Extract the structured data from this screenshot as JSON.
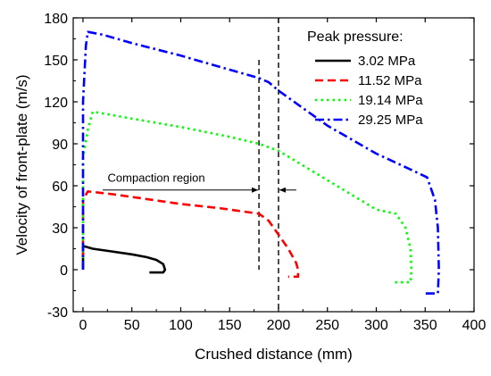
{
  "chart_data": {
    "type": "line",
    "title": "",
    "xlabel": "Crushed distance (mm)",
    "ylabel": "Velocity of front-plate (m/s)",
    "xlim": [
      -10,
      400
    ],
    "ylim": [
      -30,
      180
    ],
    "xticks": [
      "0",
      "50",
      "100",
      "150",
      "200",
      "250",
      "300",
      "350",
      "400"
    ],
    "yticks": [
      "-30",
      "0",
      "30",
      "60",
      "90",
      "120",
      "150",
      "180"
    ],
    "grid": false,
    "legend_title": "Peak pressure:",
    "legend_position": "top-right",
    "series": [
      {
        "name": "3.02 MPa",
        "color": "#000000",
        "line_style": "solid",
        "points": [
          [
            0,
            0
          ],
          [
            0,
            17
          ],
          [
            10,
            15
          ],
          [
            30,
            13
          ],
          [
            50,
            11
          ],
          [
            65,
            9
          ],
          [
            75,
            7
          ],
          [
            82,
            4
          ],
          [
            84,
            0
          ],
          [
            82,
            -2
          ],
          [
            75,
            -2
          ],
          [
            68,
            -2
          ]
        ]
      },
      {
        "name": "11.52 MPa",
        "color": "#ff0000",
        "line_style": "dash",
        "points": [
          [
            0,
            0
          ],
          [
            0,
            50
          ],
          [
            5,
            56
          ],
          [
            30,
            54
          ],
          [
            60,
            51
          ],
          [
            100,
            47
          ],
          [
            140,
            44
          ],
          [
            180,
            40
          ],
          [
            190,
            35
          ],
          [
            200,
            25
          ],
          [
            210,
            15
          ],
          [
            218,
            5
          ],
          [
            220,
            0
          ],
          [
            220,
            -5
          ],
          [
            210,
            -5
          ]
        ]
      },
      {
        "name": "19.14 MPa",
        "color": "#00ff00",
        "line_style": "dot",
        "points": [
          [
            0,
            0
          ],
          [
            0,
            80
          ],
          [
            5,
            100
          ],
          [
            10,
            113
          ],
          [
            50,
            108
          ],
          [
            100,
            102
          ],
          [
            150,
            95
          ],
          [
            180,
            90
          ],
          [
            200,
            85
          ],
          [
            250,
            64
          ],
          [
            300,
            43
          ],
          [
            320,
            40
          ],
          [
            330,
            30
          ],
          [
            335,
            15
          ],
          [
            336,
            0
          ],
          [
            335,
            -9
          ],
          [
            318,
            -9
          ]
        ]
      },
      {
        "name": "29.25 MPa",
        "color": "#0000ff",
        "line_style": "dash-dot",
        "points": [
          [
            0,
            0
          ],
          [
            0,
            120
          ],
          [
            3,
            160
          ],
          [
            5,
            170
          ],
          [
            20,
            168
          ],
          [
            50,
            162
          ],
          [
            100,
            153
          ],
          [
            150,
            143
          ],
          [
            180,
            137
          ],
          [
            190,
            134
          ],
          [
            200,
            128
          ],
          [
            250,
            103
          ],
          [
            300,
            83
          ],
          [
            340,
            70
          ],
          [
            352,
            66
          ],
          [
            360,
            50
          ],
          [
            363,
            30
          ],
          [
            364,
            0
          ],
          [
            363,
            -17
          ],
          [
            350,
            -17
          ]
        ]
      }
    ],
    "vertical_lines": [
      {
        "x": 180,
        "y_from": 0,
        "y_to": 150
      },
      {
        "x": 200,
        "y_from": -30,
        "y_to": 180
      }
    ],
    "annotation": {
      "text": "Compaction region",
      "x": 75,
      "y": 63,
      "arrow_y": 57
    }
  }
}
